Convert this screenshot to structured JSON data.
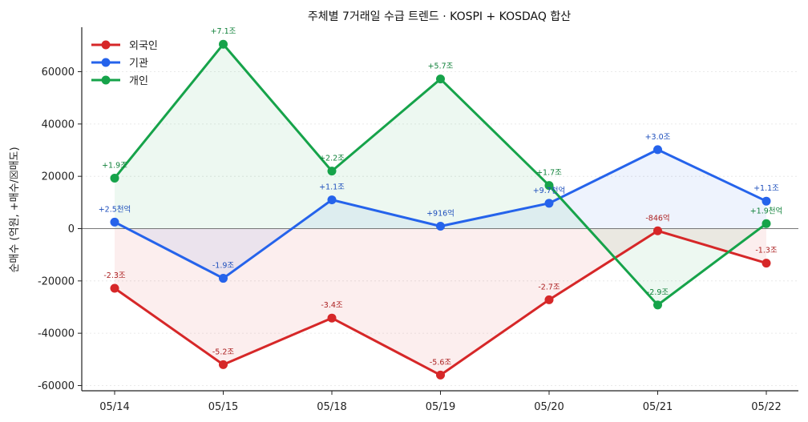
{
  "chart_data": {
    "type": "line",
    "title": "주체별 7거래일 수급 트렌드 · KOSPI + KOSDAQ 합산",
    "xlabel": "",
    "ylabel": "순매수 (억원, +매수/☒매도)",
    "categories": [
      "05/14",
      "05/15",
      "05/18",
      "05/19",
      "05/20",
      "05/21",
      "05/22"
    ],
    "ylim": [
      -62000,
      77000
    ],
    "yticks": [
      -60000,
      -40000,
      -20000,
      0,
      20000,
      40000,
      60000
    ],
    "grid": "horizontal-dotted",
    "legend_position": "top-left",
    "series": [
      {
        "name": "외국인",
        "color": "#d62728",
        "values": [
          -22800,
          -52000,
          -34200,
          -56000,
          -27200,
          -850,
          -13200
        ],
        "labels": [
          "-2.3조",
          "-5.2조",
          "-3.4조",
          "-5.6조",
          "-2.7조",
          "-846억",
          "-1.3조"
        ]
      },
      {
        "name": "기관",
        "color": "#2563eb",
        "values": [
          2500,
          -19000,
          11000,
          916,
          9700,
          30200,
          10500
        ],
        "labels": [
          "+2.5천억",
          "-1.9조",
          "+1.1조",
          "+916억",
          "+9.7천억",
          "+3.0조",
          "+1.1조"
        ]
      },
      {
        "name": "개인",
        "color": "#16a34a",
        "values": [
          19300,
          70500,
          22000,
          57200,
          16500,
          -29200,
          1900
        ],
        "labels": [
          "+1.9조",
          "+7.1조",
          "+2.2조",
          "+5.7조",
          "+1.7조",
          "-2.9조",
          "+1.9천억"
        ]
      }
    ]
  }
}
